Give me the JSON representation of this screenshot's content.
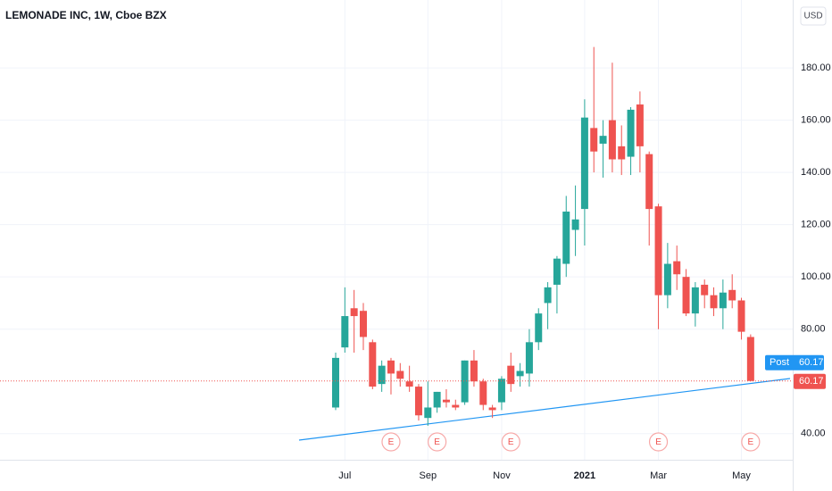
{
  "chart_data": {
    "type": "candlestick",
    "title": "LEMONADE INC, 1W, Cboe BZX",
    "currency": "USD",
    "categories": [
      null,
      "Jul",
      null,
      null,
      null,
      null,
      null,
      null,
      null,
      null,
      "Sep",
      null,
      null,
      null,
      null,
      null,
      null,
      null,
      "Nov",
      null,
      null,
      null,
      null,
      null,
      null,
      null,
      null,
      "2021",
      null,
      null,
      null,
      null,
      null,
      null,
      null,
      "Mar",
      null,
      null,
      null,
      null,
      null,
      null,
      null,
      null,
      "May",
      null
    ],
    "open": [
      50,
      73,
      88,
      87,
      75,
      59,
      68,
      64,
      60,
      58,
      46,
      50,
      53,
      51,
      52,
      68,
      60,
      50,
      52,
      66,
      62,
      63,
      75,
      90,
      97,
      105,
      118,
      126,
      157,
      151,
      160,
      150,
      146,
      166,
      147,
      127,
      93,
      106,
      100,
      86,
      97,
      93,
      88,
      95,
      91,
      77
    ],
    "high": [
      71,
      96,
      95,
      90,
      76,
      68,
      69,
      67,
      66,
      59,
      60,
      56,
      57,
      53,
      68,
      72,
      61,
      51,
      62,
      71,
      67,
      80,
      88,
      98,
      108,
      131,
      135,
      168,
      188,
      160,
      182,
      158,
      165,
      171,
      148,
      128,
      113,
      112,
      103,
      98,
      99,
      96,
      99,
      101,
      92,
      78
    ],
    "low": [
      49,
      71,
      71,
      72,
      57,
      56,
      55,
      58,
      56,
      45,
      43,
      48,
      50,
      49,
      51,
      58,
      49,
      46,
      49,
      56,
      58,
      58,
      72,
      80,
      86,
      100,
      108,
      112,
      140,
      138,
      140,
      139,
      139,
      140,
      112,
      80,
      88,
      95,
      85,
      81,
      88,
      85,
      80,
      88,
      76,
      60
    ],
    "close": [
      69,
      85,
      85,
      77,
      58,
      66,
      63,
      61,
      58,
      47,
      50,
      56,
      52,
      50,
      68,
      60,
      51,
      49,
      61,
      59,
      64,
      75,
      86,
      96,
      107,
      125,
      122,
      161,
      148,
      154,
      145,
      145,
      164,
      150,
      126,
      93,
      105,
      101,
      86,
      96,
      93,
      88,
      94,
      91,
      79,
      60.17
    ],
    "up_color": "#26a69a",
    "down_color": "#ef5350",
    "ylim": [
      30,
      206
    ],
    "yticks": [
      {
        "value": 40,
        "label": "40.00"
      },
      {
        "value": 80,
        "label": "80.00"
      },
      {
        "value": 100,
        "label": "100.00"
      },
      {
        "value": 120,
        "label": "120.00"
      },
      {
        "value": 140,
        "label": "140.00"
      },
      {
        "value": 160,
        "label": "160.00"
      },
      {
        "value": 180,
        "label": "180.00"
      }
    ],
    "grid": true,
    "last_price": 60.17,
    "post_label": "Post",
    "earnings": [
      {
        "x": 6,
        "label": "E"
      },
      {
        "x": 11,
        "label": "E"
      },
      {
        "x": 19,
        "label": "E"
      },
      {
        "x": 35,
        "label": "E"
      },
      {
        "x": 45,
        "label": "E"
      }
    ]
  }
}
